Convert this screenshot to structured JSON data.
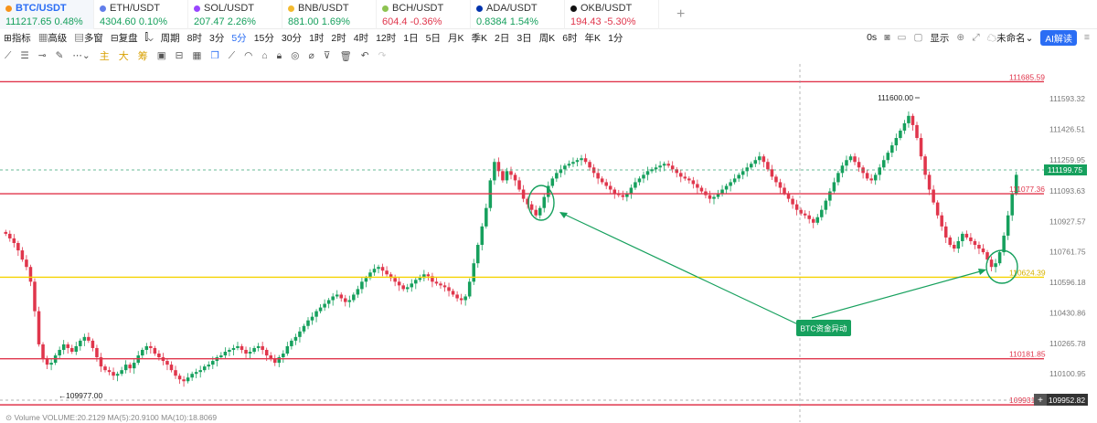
{
  "tabs": [
    {
      "symbol": "BTC/USDT",
      "price": "111217.65",
      "change": "0.48%",
      "trend": "up",
      "dot": "#f7931a"
    },
    {
      "symbol": "ETH/USDT",
      "price": "4304.60",
      "change": "0.10%",
      "trend": "up",
      "dot": "#627eea"
    },
    {
      "symbol": "SOL/USDT",
      "price": "207.47",
      "change": "2.26%",
      "trend": "up",
      "dot": "#9945ff"
    },
    {
      "symbol": "BNB/USDT",
      "price": "881.00",
      "change": "1.69%",
      "trend": "up",
      "dot": "#f3ba2f"
    },
    {
      "symbol": "BCH/USDT",
      "price": "604.4",
      "change": "-0.36%",
      "trend": "down",
      "dot": "#8dc351"
    },
    {
      "symbol": "ADA/USDT",
      "price": "0.8384",
      "change": "1.54%",
      "trend": "up",
      "dot": "#0033ad"
    },
    {
      "symbol": "OKB/USDT",
      "price": "194.43",
      "change": "-5.30%",
      "trend": "down",
      "dot": "#111111"
    }
  ],
  "toolbar": {
    "indicators": "指标",
    "advanced": "高级",
    "multi_window": "多窗",
    "replay": "复盘",
    "period_label": "周期",
    "periods": [
      "8时",
      "3分",
      "5分",
      "15分",
      "30分",
      "1时",
      "2时",
      "4时",
      "12时",
      "1日",
      "5日",
      "月K",
      "季K",
      "2日",
      "3日",
      "周K",
      "6时",
      "年K",
      "1分"
    ],
    "selected_period": "5分",
    "countdown": "0s",
    "display": "显示",
    "theme": "未命名",
    "ai_button": "AI解读"
  },
  "drawing_tools": {
    "chars": [
      "主",
      "大",
      "筹"
    ]
  },
  "chart_data": {
    "type": "candlestick",
    "symbol": "BTC/USDT",
    "interval": "5分",
    "y_ticks": [
      111593.32,
      111426.51,
      111259.95,
      111093.63,
      110927.57,
      110761.75,
      110596.18,
      110430.86,
      110265.78,
      110100.95
    ],
    "current_price": "111199.75",
    "crosshair_price": "109952.82",
    "horizontal_lines": [
      {
        "label": "111685.59",
        "value": 111685.59,
        "color": "#e0364c"
      },
      {
        "label": "111077.36",
        "value": 111077.36,
        "color": "#e0364c"
      },
      {
        "label": "110624.39",
        "value": 110624.39,
        "color": "#f5d300"
      },
      {
        "label": "110181.85",
        "value": 110181.85,
        "color": "#e0364c"
      },
      {
        "label": "109931.80",
        "value": 109931.8,
        "color": "#e0364c"
      }
    ],
    "high_marker": "111600.00",
    "low_marker": "109977.00",
    "annotation": "BTC资金异动",
    "closes": [
      110860,
      110835,
      110810,
      110770,
      110720,
      110680,
      110600,
      110440,
      110260,
      110180,
      110150,
      110160,
      110200,
      110230,
      110260,
      110240,
      110220,
      110250,
      110280,
      110300,
      110280,
      110240,
      110190,
      110140,
      110120,
      110110,
      110090,
      110100,
      110120,
      110150,
      110130,
      110160,
      110200,
      110230,
      110250,
      110240,
      110210,
      110190,
      110170,
      110150,
      110120,
      110090,
      110070,
      110060,
      110080,
      110100,
      110110,
      110120,
      110140,
      110150,
      110170,
      110190,
      110200,
      110220,
      110230,
      110240,
      110250,
      110230,
      110210,
      110220,
      110240,
      110250,
      110230,
      110200,
      110180,
      110160,
      110190,
      110210,
      110250,
      110280,
      110300,
      110330,
      110360,
      110390,
      110410,
      110440,
      110460,
      110480,
      110500,
      110520,
      110530,
      110510,
      110490,
      110500,
      110530,
      110560,
      110600,
      110620,
      110650,
      110670,
      110680,
      110660,
      110640,
      110620,
      110600,
      110580,
      110560,
      110570,
      110590,
      110610,
      110620,
      110640,
      110630,
      110600,
      110590,
      110580,
      110570,
      110550,
      110530,
      110510,
      110500,
      110520,
      110600,
      110700,
      110800,
      110900,
      111000,
      111150,
      111250,
      111200,
      111150,
      111200,
      111180,
      111150,
      111100,
      111050,
      111020,
      110990,
      110960,
      111000,
      111060,
      111120,
      111160,
      111190,
      111210,
      111230,
      111240,
      111250,
      111260,
      111270,
      111250,
      111220,
      111190,
      111160,
      111140,
      111120,
      111100,
      111080,
      111070,
      111060,
      111080,
      111110,
      111140,
      111160,
      111180,
      111200,
      111210,
      111220,
      111230,
      111240,
      111230,
      111210,
      111190,
      111170,
      111160,
      111150,
      111130,
      111110,
      111090,
      111070,
      111050,
      111060,
      111080,
      111100,
      111120,
      111140,
      111160,
      111180,
      111200,
      111220,
      111240,
      111260,
      111280,
      111250,
      111210,
      111170,
      111140,
      111110,
      111080,
      111050,
      111020,
      110990,
      110970,
      110960,
      110940,
      110920,
      110950,
      110990,
      111040,
      111090,
      111140,
      111190,
      111230,
      111260,
      111280,
      111250,
      111220,
      111190,
      111160,
      111150,
      111180,
      111220,
      111260,
      111300,
      111340,
      111380,
      111420,
      111460,
      111500,
      111450,
      111380,
      111280,
      111180,
      111100,
      111030,
      110960,
      110900,
      110840,
      110800,
      110780,
      110820,
      110860,
      110840,
      110820,
      110800,
      110780,
      110760,
      110720,
      110680,
      110700,
      110760,
      110850,
      110960,
      111080,
      111180
    ]
  }
}
